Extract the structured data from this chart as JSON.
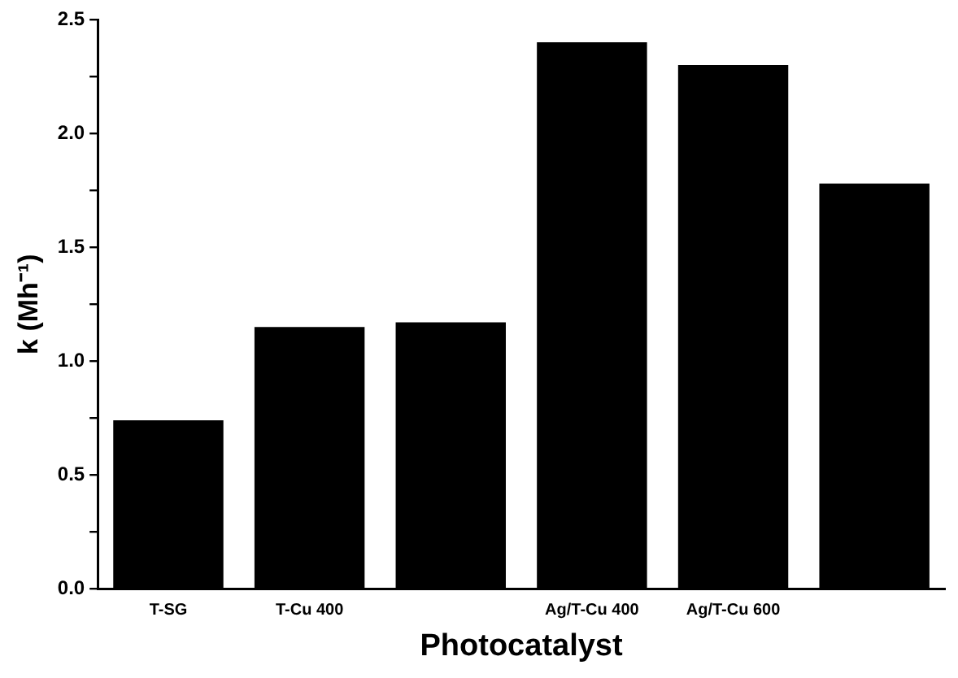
{
  "chart_data": {
    "type": "bar",
    "xlabel": "Photocatalyst",
    "ylabel": "k (Mh⁻¹)",
    "categories": [
      "T-SG",
      "T-Cu 400",
      null,
      "Ag/T-Cu 400",
      "Ag/T-Cu 600",
      null
    ],
    "values": [
      0.74,
      1.15,
      1.17,
      2.4,
      2.3,
      1.78
    ],
    "color": "#000000",
    "ylim": [
      0,
      2.5
    ],
    "yticks": [
      {
        "value": 0,
        "label": "0.0"
      },
      {
        "value": 0.25,
        "label": null
      },
      {
        "value": 0.5,
        "label": "0.5"
      },
      {
        "value": 0.75,
        "label": null
      },
      {
        "value": 1,
        "label": "1.0"
      },
      {
        "value": 1.25,
        "label": null
      },
      {
        "value": 1.5,
        "label": "1.5"
      },
      {
        "value": 1.75,
        "label": null
      },
      {
        "value": 2,
        "label": "2.0"
      },
      {
        "value": 2.25,
        "label": null
      },
      {
        "value": 2.5,
        "label": "2.5"
      }
    ],
    "grid": false,
    "legend": false
  }
}
